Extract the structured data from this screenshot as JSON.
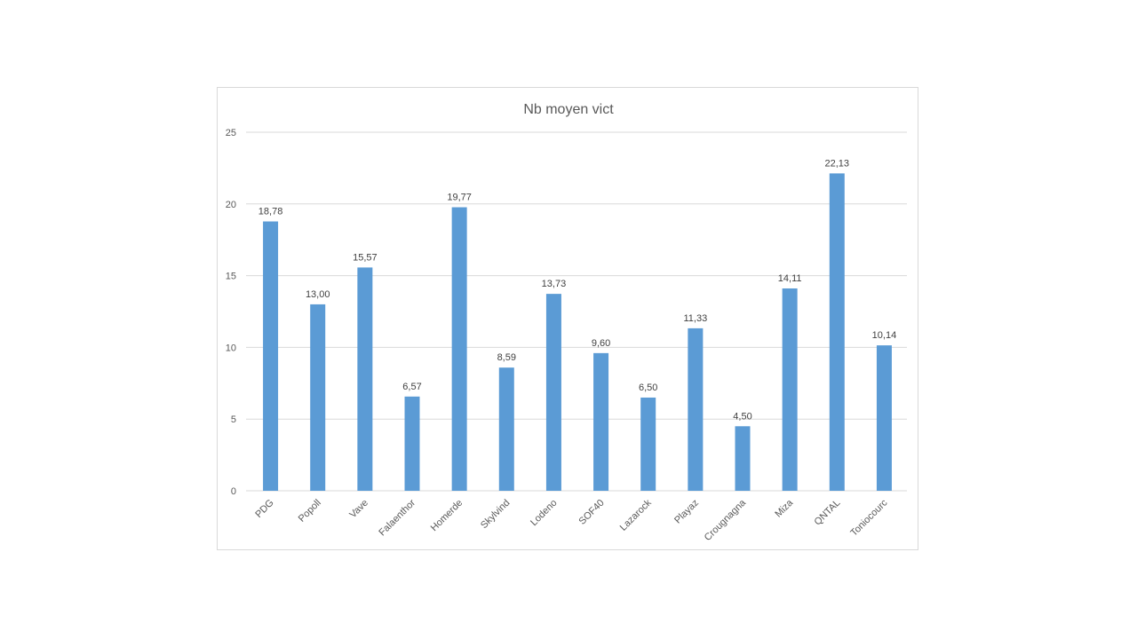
{
  "chart_data": {
    "type": "bar",
    "title": "Nb moyen vict",
    "xlabel": "",
    "ylabel": "",
    "ylim": [
      0,
      25
    ],
    "yticks": [
      0,
      5,
      10,
      15,
      20,
      25
    ],
    "grid": true,
    "legend": "none",
    "bar_color": "#5b9bd5",
    "categories": [
      "PDG",
      "Popoll",
      "Vave",
      "Falaenthor",
      "Homerde",
      "Skylvind",
      "Lodeno",
      "SOF40",
      "Lazarock",
      "Playaz",
      "Crougnagna",
      "Miza",
      "QNTAL",
      "Toniocourc"
    ],
    "values": [
      18.78,
      13.0,
      15.57,
      6.57,
      19.77,
      8.59,
      13.73,
      9.6,
      6.5,
      11.33,
      4.5,
      14.11,
      22.13,
      10.14
    ],
    "data_labels": [
      "18,78",
      "13,00",
      "15,57",
      "6,57",
      "19,77",
      "8,59",
      "13,73",
      "9,60",
      "6,50",
      "11,33",
      "4,50",
      "14,11",
      "22,13",
      "10,14"
    ]
  }
}
